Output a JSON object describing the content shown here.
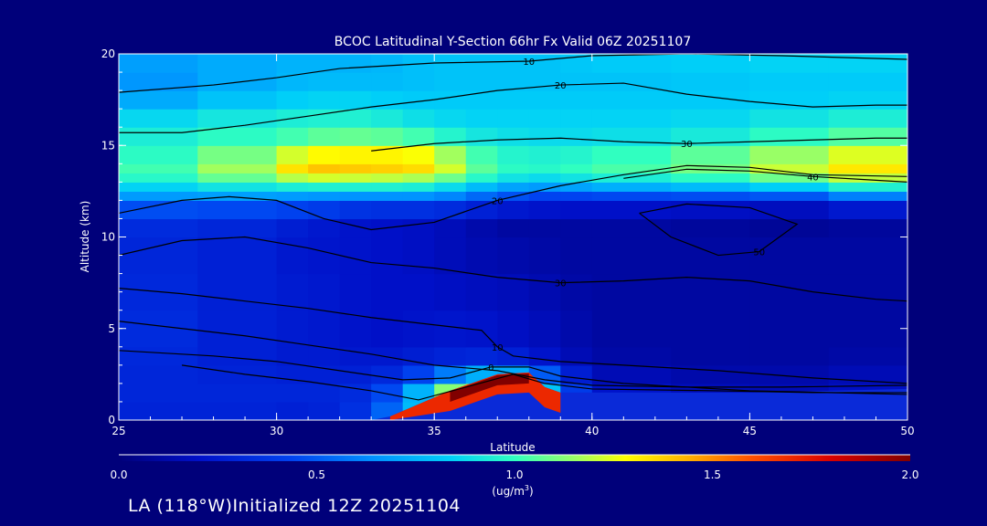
{
  "chart_data": {
    "type": "heatmap",
    "title": "BCOC Latitudinal Y-Section 66hr  Fx Valid 06Z 20251107",
    "xlabel": "Latitude",
    "ylabel": "Altitude (km)",
    "xlim": [
      25,
      50
    ],
    "ylim": [
      0,
      20
    ],
    "x_ticks": [
      "25",
      "30",
      "35",
      "40",
      "45",
      "50"
    ],
    "y_ticks": [
      "0",
      "5",
      "10",
      "15",
      "20"
    ],
    "colorbar": {
      "range": [
        0.0,
        2.0
      ],
      "ticks": [
        "0.0",
        "0.5",
        "1.0",
        "1.5",
        "2.0"
      ],
      "label": "1.0",
      "units": "(ug/m",
      "units_sup": "3",
      "units_end": ")"
    },
    "color_field_x": [
      25,
      27.5,
      30,
      31,
      32,
      33,
      34,
      35,
      36,
      37,
      38,
      39,
      40,
      42.5,
      45,
      47.5,
      50
    ],
    "color_field_y": [
      0,
      1,
      2,
      3,
      4,
      6,
      8,
      10,
      11,
      12,
      12.5,
      13,
      13.5,
      14,
      15,
      16,
      17,
      18,
      19,
      20
    ],
    "color_field_values": [
      [
        0.25,
        0.3,
        0.25,
        0.25,
        0.3,
        0.4,
        0.6,
        0.6,
        0.4,
        0.3,
        0.3,
        0.2,
        0.15,
        0.1,
        0.1,
        0.1,
        0.15
      ],
      [
        0.3,
        0.3,
        0.3,
        0.3,
        0.3,
        0.4,
        0.7,
        1.2,
        1.6,
        1.5,
        1.1,
        0.6,
        0.3,
        0.2,
        0.15,
        0.15,
        0.25
      ],
      [
        0.3,
        0.3,
        0.3,
        0.3,
        0.3,
        0.3,
        0.4,
        0.7,
        1.0,
        1.2,
        1.0,
        0.5,
        0.2,
        0.15,
        0.15,
        0.15,
        0.2
      ],
      [
        0.3,
        0.3,
        0.25,
        0.25,
        0.25,
        0.25,
        0.3,
        0.3,
        0.35,
        0.4,
        0.3,
        0.2,
        0.15,
        0.1,
        0.1,
        0.1,
        0.15
      ],
      [
        0.35,
        0.3,
        0.25,
        0.25,
        0.25,
        0.2,
        0.2,
        0.25,
        0.25,
        0.2,
        0.2,
        0.15,
        0.1,
        0.1,
        0.1,
        0.1,
        0.1
      ],
      [
        0.35,
        0.3,
        0.25,
        0.25,
        0.2,
        0.2,
        0.2,
        0.2,
        0.2,
        0.2,
        0.15,
        0.15,
        0.1,
        0.1,
        0.1,
        0.1,
        0.1
      ],
      [
        0.3,
        0.3,
        0.25,
        0.25,
        0.25,
        0.2,
        0.2,
        0.2,
        0.15,
        0.15,
        0.15,
        0.1,
        0.1,
        0.1,
        0.1,
        0.1,
        0.1
      ],
      [
        0.3,
        0.3,
        0.25,
        0.2,
        0.2,
        0.2,
        0.2,
        0.15,
        0.15,
        0.1,
        0.1,
        0.1,
        0.1,
        0.1,
        0.1,
        0.1,
        0.1
      ],
      [
        0.35,
        0.35,
        0.3,
        0.3,
        0.25,
        0.2,
        0.2,
        0.2,
        0.15,
        0.1,
        0.1,
        0.1,
        0.1,
        0.1,
        0.05,
        0.05,
        0.1
      ],
      [
        0.55,
        0.6,
        0.55,
        0.55,
        0.5,
        0.5,
        0.5,
        0.5,
        0.45,
        0.4,
        0.35,
        0.3,
        0.3,
        0.3,
        0.3,
        0.3,
        0.5
      ],
      [
        0.75,
        0.8,
        0.8,
        0.8,
        0.8,
        0.8,
        0.8,
        0.8,
        0.7,
        0.6,
        0.55,
        0.55,
        0.6,
        0.6,
        0.65,
        0.7,
        0.9
      ],
      [
        0.9,
        0.95,
        1.05,
        1.1,
        1.1,
        1.1,
        1.1,
        1.05,
        0.95,
        0.85,
        0.8,
        0.8,
        0.85,
        0.9,
        0.95,
        1.05,
        1.15
      ],
      [
        1.0,
        1.05,
        1.25,
        1.35,
        1.35,
        1.3,
        1.3,
        1.25,
        1.1,
        1.0,
        0.95,
        0.95,
        1.0,
        1.0,
        1.1,
        1.25,
        1.35
      ],
      [
        1.0,
        1.05,
        1.3,
        1.45,
        1.45,
        1.45,
        1.45,
        1.4,
        1.15,
        1.0,
        1.0,
        1.0,
        1.05,
        1.1,
        1.2,
        1.3,
        1.4
      ],
      [
        0.9,
        1.0,
        1.05,
        1.1,
        1.15,
        1.15,
        1.15,
        1.1,
        1.0,
        0.95,
        0.9,
        0.9,
        0.9,
        0.95,
        1.0,
        1.1,
        1.15
      ],
      [
        0.9,
        0.95,
        0.95,
        1.0,
        1.0,
        1.0,
        0.95,
        0.9,
        0.85,
        0.85,
        0.85,
        0.85,
        0.85,
        0.85,
        0.9,
        0.95,
        1.0
      ],
      [
        0.75,
        0.85,
        0.9,
        0.9,
        0.9,
        0.9,
        0.85,
        0.85,
        0.85,
        0.85,
        0.85,
        0.85,
        0.85,
        0.85,
        0.85,
        0.9,
        0.9
      ],
      [
        0.6,
        0.7,
        0.75,
        0.8,
        0.8,
        0.8,
        0.8,
        0.8,
        0.8,
        0.8,
        0.8,
        0.8,
        0.8,
        0.8,
        0.8,
        0.8,
        0.8
      ],
      [
        0.65,
        0.7,
        0.75,
        0.75,
        0.75,
        0.75,
        0.75,
        0.8,
        0.8,
        0.8,
        0.8,
        0.8,
        0.8,
        0.8,
        0.85,
        0.85,
        0.85
      ],
      [
        0.7,
        0.7,
        0.75,
        0.75,
        0.75,
        0.75,
        0.8,
        0.8,
        0.8,
        0.8,
        0.8,
        0.8,
        0.85,
        0.85,
        0.85,
        0.85,
        0.85
      ]
    ],
    "terrain": [
      [
        25,
        0
      ],
      [
        33,
        0
      ],
      [
        33.6,
        0.2
      ],
      [
        35.5,
        1.6
      ],
      [
        37,
        2.5
      ],
      [
        38,
        2.6
      ],
      [
        38.5,
        1.8
      ],
      [
        39,
        1.5
      ],
      [
        40,
        1.5
      ],
      [
        45,
        1.5
      ],
      [
        50,
        1.7
      ],
      [
        50,
        0
      ]
    ],
    "dust_plume_values": [
      1.7,
      2.0
    ],
    "contours": [
      {
        "label": "10",
        "points": [
          [
            25,
            17.9
          ],
          [
            28,
            18.3
          ],
          [
            30,
            18.7
          ],
          [
            32,
            19.2
          ],
          [
            35,
            19.5
          ],
          [
            38,
            19.6
          ],
          [
            40,
            19.9
          ],
          [
            43,
            20
          ],
          [
            46,
            19.9
          ],
          [
            50,
            19.7
          ]
        ]
      },
      {
        "label": "20",
        "points": [
          [
            25,
            15.7
          ],
          [
            27,
            15.7
          ],
          [
            29,
            16.1
          ],
          [
            31,
            16.6
          ],
          [
            33,
            17.1
          ],
          [
            35,
            17.5
          ],
          [
            37,
            18.0
          ],
          [
            39,
            18.3
          ],
          [
            41,
            18.4
          ],
          [
            43,
            17.8
          ],
          [
            45,
            17.4
          ],
          [
            47,
            17.1
          ],
          [
            49,
            17.2
          ],
          [
            50,
            17.2
          ]
        ]
      },
      {
        "label": "30",
        "points": [
          [
            33,
            14.7
          ],
          [
            35,
            15.1
          ],
          [
            37,
            15.3
          ],
          [
            39,
            15.4
          ],
          [
            41,
            15.2
          ],
          [
            43,
            15.1
          ],
          [
            45,
            15.2
          ],
          [
            47,
            15.3
          ],
          [
            49,
            15.4
          ],
          [
            50,
            15.4
          ]
        ]
      },
      {
        "label": "40",
        "points": [
          [
            41,
            13.2
          ],
          [
            43,
            13.7
          ],
          [
            45,
            13.6
          ],
          [
            47,
            13.3
          ],
          [
            49,
            13.1
          ],
          [
            50,
            13.0
          ]
        ]
      },
      {
        "label": "50",
        "points": [
          [
            41.5,
            11.3
          ],
          [
            43,
            11.8
          ],
          [
            45,
            11.6
          ],
          [
            46.5,
            10.7
          ],
          [
            45.3,
            9.2
          ],
          [
            44,
            9.0
          ],
          [
            42.5,
            10.0
          ],
          [
            41.5,
            11.3
          ]
        ]
      },
      {
        "label": "20",
        "points": [
          [
            25,
            11.3
          ],
          [
            27,
            12.0
          ],
          [
            28.5,
            12.2
          ],
          [
            30,
            12.0
          ],
          [
            31.5,
            11.0
          ],
          [
            33,
            10.4
          ],
          [
            35,
            10.8
          ],
          [
            37,
            12.0
          ],
          [
            39,
            12.8
          ],
          [
            41,
            13.4
          ],
          [
            43,
            13.9
          ],
          [
            45,
            13.8
          ],
          [
            47,
            13.4
          ],
          [
            50,
            13.3
          ]
        ]
      },
      {
        "label": "30",
        "points": [
          [
            25,
            9.0
          ],
          [
            27,
            9.8
          ],
          [
            29,
            10.0
          ],
          [
            31,
            9.4
          ],
          [
            33,
            8.6
          ],
          [
            35,
            8.3
          ],
          [
            37,
            7.8
          ],
          [
            39,
            7.5
          ],
          [
            41,
            7.6
          ],
          [
            43,
            7.8
          ],
          [
            45,
            7.6
          ],
          [
            47,
            7.0
          ],
          [
            49,
            6.6
          ],
          [
            50,
            6.5
          ]
        ]
      },
      {
        "label": "10",
        "points": [
          [
            25,
            7.2
          ],
          [
            27,
            6.9
          ],
          [
            29,
            6.5
          ],
          [
            31,
            6.1
          ],
          [
            33,
            5.6
          ],
          [
            35,
            5.2
          ],
          [
            36.5,
            4.9
          ],
          [
            37,
            4.0
          ],
          [
            37.5,
            3.5
          ],
          [
            39,
            3.2
          ],
          [
            41,
            3.0
          ],
          [
            44,
            2.7
          ],
          [
            47,
            2.3
          ],
          [
            50,
            2.0
          ]
        ]
      },
      {
        "label": "",
        "points": [
          [
            25,
            5.4
          ],
          [
            27,
            5.0
          ],
          [
            29,
            4.6
          ],
          [
            31,
            4.1
          ],
          [
            33,
            3.6
          ],
          [
            35,
            3.0
          ],
          [
            37,
            2.7
          ],
          [
            38.5,
            2.2
          ],
          [
            40,
            1.9
          ],
          [
            43,
            1.8
          ],
          [
            46,
            1.8
          ],
          [
            50,
            1.9
          ]
        ]
      },
      {
        "label": "",
        "points": [
          [
            27,
            3.0
          ],
          [
            29,
            2.5
          ],
          [
            31,
            2.1
          ],
          [
            33,
            1.6
          ],
          [
            34.5,
            1.1
          ],
          [
            36,
            1.8
          ],
          [
            37.5,
            2.5
          ],
          [
            38.5,
            2.0
          ],
          [
            40,
            1.7
          ],
          [
            44,
            1.6
          ],
          [
            47,
            1.5
          ],
          [
            50,
            1.5
          ]
        ]
      },
      {
        "label": "0",
        "points": [
          [
            25,
            3.8
          ],
          [
            28,
            3.5
          ],
          [
            30,
            3.2
          ],
          [
            32,
            2.7
          ],
          [
            34,
            2.2
          ],
          [
            35.5,
            2.3
          ],
          [
            36.8,
            2.9
          ],
          [
            38,
            2.9
          ],
          [
            39,
            2.4
          ],
          [
            41,
            2.0
          ],
          [
            45,
            1.6
          ],
          [
            50,
            1.4
          ]
        ]
      }
    ]
  },
  "footer": {
    "prefix": "LA (118",
    "degree": "°",
    "suffix": "W)Initialized 12Z 20251104"
  }
}
